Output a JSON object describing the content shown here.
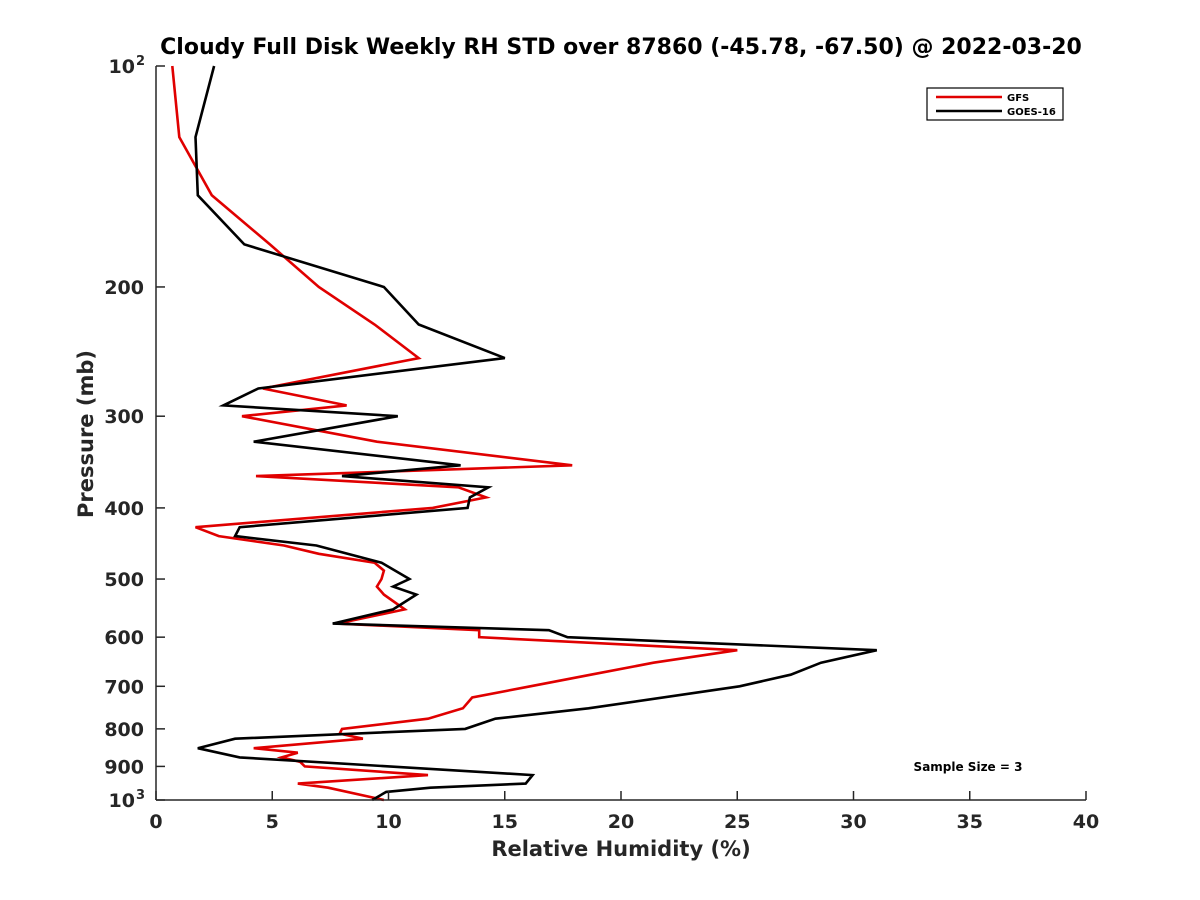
{
  "chart_data": {
    "type": "line",
    "title": "Cloudy Full Disk Weekly RH STD over 87860 (-45.78, -67.50) @ 2022-03-20",
    "xlabel": "Relative Humidity (%)",
    "ylabel": "Pressure (mb)",
    "xlim": [
      0,
      40
    ],
    "ylim": [
      100,
      1000
    ],
    "yscale": "log",
    "y_reversed": true,
    "grid": false,
    "legend_position": "top-right",
    "x_ticks": [
      "0",
      "5",
      "10",
      "15",
      "20",
      "25",
      "30",
      "35",
      "40"
    ],
    "y_ticks": [
      {
        "value": 100,
        "label": "10",
        "sup": "2"
      },
      {
        "value": 200,
        "label": "200"
      },
      {
        "value": 300,
        "label": "300"
      },
      {
        "value": 400,
        "label": "400"
      },
      {
        "value": 500,
        "label": "500"
      },
      {
        "value": 600,
        "label": "600"
      },
      {
        "value": 700,
        "label": "700"
      },
      {
        "value": 800,
        "label": "800"
      },
      {
        "value": 900,
        "label": "900"
      },
      {
        "value": 1000,
        "label": "10",
        "sup": "3"
      }
    ],
    "annotation": "Sample Size = 3",
    "series": [
      {
        "name": "GFS",
        "color": "#e00000",
        "points": [
          [
            0.7,
            100
          ],
          [
            1.0,
            125
          ],
          [
            2.4,
            150
          ],
          [
            4.9,
            175
          ],
          [
            7.0,
            200
          ],
          [
            9.4,
            225
          ],
          [
            11.3,
            250
          ],
          [
            4.6,
            275
          ],
          [
            8.2,
            290
          ],
          [
            3.7,
            300
          ],
          [
            9.5,
            325
          ],
          [
            17.9,
            350
          ],
          [
            4.3,
            362
          ],
          [
            13.0,
            375
          ],
          [
            14.2,
            387
          ],
          [
            11.9,
            400
          ],
          [
            1.7,
            425
          ],
          [
            2.7,
            437
          ],
          [
            5.5,
            450
          ],
          [
            7.0,
            462
          ],
          [
            9.4,
            475
          ],
          [
            9.8,
            487
          ],
          [
            9.7,
            500
          ],
          [
            9.5,
            512
          ],
          [
            9.8,
            525
          ],
          [
            10.7,
            550
          ],
          [
            7.8,
            575
          ],
          [
            13.9,
            587
          ],
          [
            13.9,
            600
          ],
          [
            25.0,
            625
          ],
          [
            21.4,
            650
          ],
          [
            18.7,
            675
          ],
          [
            16.1,
            700
          ],
          [
            13.6,
            725
          ],
          [
            13.2,
            750
          ],
          [
            11.7,
            775
          ],
          [
            8.0,
            800
          ],
          [
            7.9,
            812
          ],
          [
            8.9,
            825
          ],
          [
            4.2,
            850
          ],
          [
            6.1,
            862
          ],
          [
            5.4,
            875
          ],
          [
            6.2,
            887
          ],
          [
            6.4,
            900
          ],
          [
            11.7,
            925
          ],
          [
            6.1,
            950
          ],
          [
            7.4,
            962
          ],
          [
            9.8,
            1000
          ]
        ]
      },
      {
        "name": "GOES-16",
        "color": "#000000",
        "points": [
          [
            2.5,
            100
          ],
          [
            1.7,
            125
          ],
          [
            1.8,
            150
          ],
          [
            3.8,
            175
          ],
          [
            9.8,
            200
          ],
          [
            11.3,
            225
          ],
          [
            15.0,
            250
          ],
          [
            4.4,
            275
          ],
          [
            2.9,
            290
          ],
          [
            10.4,
            300
          ],
          [
            4.2,
            325
          ],
          [
            13.1,
            350
          ],
          [
            8.0,
            362
          ],
          [
            14.3,
            375
          ],
          [
            13.5,
            387
          ],
          [
            13.4,
            400
          ],
          [
            3.6,
            425
          ],
          [
            3.4,
            437
          ],
          [
            6.9,
            450
          ],
          [
            9.7,
            475
          ],
          [
            10.9,
            500
          ],
          [
            10.2,
            512
          ],
          [
            11.2,
            525
          ],
          [
            10.2,
            550
          ],
          [
            7.6,
            575
          ],
          [
            16.9,
            587
          ],
          [
            17.7,
            600
          ],
          [
            31.0,
            625
          ],
          [
            28.6,
            650
          ],
          [
            27.3,
            675
          ],
          [
            25.1,
            700
          ],
          [
            18.6,
            750
          ],
          [
            14.6,
            775
          ],
          [
            13.3,
            800
          ],
          [
            3.4,
            825
          ],
          [
            1.8,
            850
          ],
          [
            3.6,
            875
          ],
          [
            16.2,
            925
          ],
          [
            15.9,
            950
          ],
          [
            11.8,
            962
          ],
          [
            9.9,
            975
          ],
          [
            9.3,
            1000
          ]
        ]
      }
    ]
  }
}
